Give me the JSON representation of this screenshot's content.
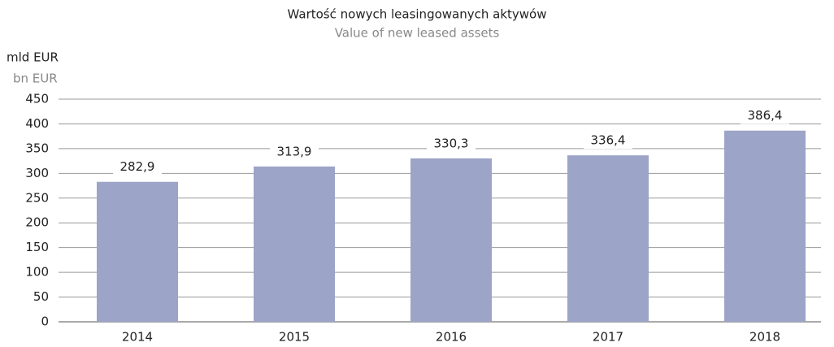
{
  "chart_data": {
    "type": "bar",
    "title": "Wartość nowych leasingowanych aktywów",
    "subtitle": "Value of new leased assets",
    "y_label": "mld EUR",
    "y_label_secondary": "bn EUR",
    "categories": [
      "2014",
      "2015",
      "2016",
      "2017",
      "2018"
    ],
    "values": [
      282.9,
      313.9,
      330.3,
      336.4,
      386.4
    ],
    "value_labels": [
      "282,9",
      "313,9",
      "330,3",
      "336,4",
      "386,4"
    ],
    "color": "#9ca4c7",
    "ylim": [
      0,
      450
    ],
    "yticks": [
      0,
      50,
      100,
      150,
      200,
      250,
      300,
      350,
      400,
      450
    ],
    "grid": true
  }
}
